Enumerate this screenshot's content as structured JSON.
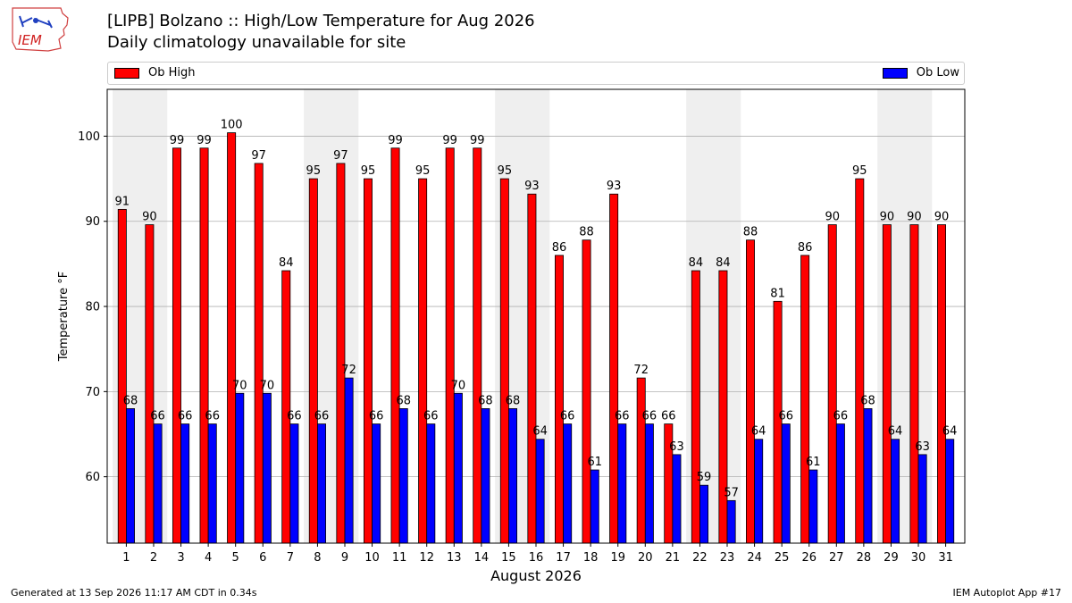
{
  "header": {
    "title": "[LIPB] Bolzano :: High/Low Temperature for Aug 2026",
    "subtitle": "Daily climatology unavailable for site",
    "logo_text": "IEM"
  },
  "footer": {
    "generated": "Generated at 13 Sep 2026 11:17 AM CDT in 0.34s",
    "app": "IEM Autoplot App #17"
  },
  "colors": {
    "high": "#ff0000",
    "low": "#0000ff",
    "weekend_band": "#efefef",
    "grid": "#b0b0b0"
  },
  "chart_data": {
    "type": "bar",
    "xlabel": "August 2026",
    "ylabel": "Temperature °F",
    "ylim": [
      52.2,
      105.5
    ],
    "yticks": [
      60,
      70,
      80,
      90,
      100
    ],
    "grid": "horizontal",
    "legend_placement": "top, above plot",
    "categories": [
      "1",
      "2",
      "3",
      "4",
      "5",
      "6",
      "7",
      "8",
      "9",
      "10",
      "11",
      "12",
      "13",
      "14",
      "15",
      "16",
      "17",
      "18",
      "19",
      "20",
      "21",
      "22",
      "23",
      "24",
      "25",
      "26",
      "27",
      "28",
      "29",
      "30",
      "31"
    ],
    "shaded_days": [
      [
        1,
        2
      ],
      [
        8,
        9
      ],
      [
        15,
        16
      ],
      [
        22,
        23
      ],
      [
        29,
        30
      ]
    ],
    "series": [
      {
        "name": "Ob High",
        "values": [
          91.4,
          89.6,
          98.6,
          98.6,
          100.4,
          96.8,
          84.2,
          95.0,
          96.8,
          95.0,
          98.6,
          95.0,
          98.6,
          98.6,
          95.0,
          93.2,
          86.0,
          87.8,
          93.2,
          71.6,
          66.2,
          84.2,
          84.2,
          87.8,
          80.6,
          86.0,
          89.6,
          95.0,
          89.6,
          89.6,
          89.6
        ],
        "labels": [
          "91",
          "90",
          "99",
          "99",
          "100",
          "97",
          "84",
          "95",
          "97",
          "95",
          "99",
          "95",
          "99",
          "99",
          "95",
          "93",
          "86",
          "88",
          "93",
          "72",
          "66",
          "84",
          "84",
          "88",
          "81",
          "86",
          "90",
          "95",
          "90",
          "90",
          "90"
        ]
      },
      {
        "name": "Ob Low",
        "values": [
          68.0,
          66.2,
          66.2,
          66.2,
          69.8,
          69.8,
          66.2,
          66.2,
          71.6,
          66.2,
          68.0,
          66.2,
          69.8,
          68.0,
          68.0,
          64.4,
          66.2,
          60.8,
          66.2,
          66.2,
          62.6,
          59.0,
          57.2,
          64.4,
          66.2,
          60.8,
          66.2,
          68.0,
          64.4,
          62.6,
          64.4
        ],
        "labels": [
          "68",
          "66",
          "66",
          "66",
          "70",
          "70",
          "66",
          "66",
          "72",
          "66",
          "68",
          "66",
          "70",
          "68",
          "68",
          "64",
          "66",
          "61",
          "66",
          "66",
          "63",
          "59",
          "57",
          "64",
          "66",
          "61",
          "66",
          "68",
          "64",
          "63",
          "64"
        ]
      }
    ]
  }
}
